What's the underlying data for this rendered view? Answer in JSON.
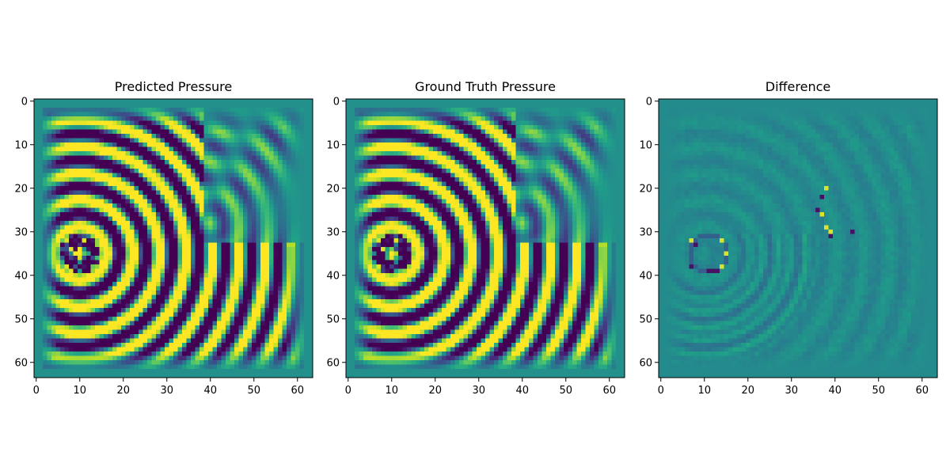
{
  "chart_data": [
    {
      "type": "heatmap",
      "title": "Predicted Pressure",
      "colormap": "viridis",
      "grid_shape": [
        64,
        64
      ],
      "xlim": [
        0,
        63
      ],
      "ylim": [
        63,
        0
      ],
      "xticks": [
        0,
        10,
        20,
        30,
        40,
        50,
        60
      ],
      "yticks": [
        0,
        10,
        20,
        30,
        40,
        50,
        60
      ],
      "grid": false,
      "field": {
        "source": [
          10,
          35
        ],
        "ring_wavelength": 6.1,
        "diffraction_origin": [
          40,
          28
        ],
        "inner_obstacle_pixels": [
          [
            7,
            32
          ],
          [
            9,
            32
          ],
          [
            11,
            32
          ],
          [
            13,
            32
          ],
          [
            8,
            34
          ],
          [
            12,
            34
          ],
          [
            10,
            36
          ],
          [
            14,
            37
          ],
          [
            7,
            38
          ],
          [
            11,
            38
          ]
        ]
      }
    },
    {
      "type": "heatmap",
      "title": "Ground Truth Pressure",
      "colormap": "viridis",
      "grid_shape": [
        64,
        64
      ],
      "xlim": [
        0,
        63
      ],
      "ylim": [
        63,
        0
      ],
      "xticks": [
        0,
        10,
        20,
        30,
        40,
        50,
        60
      ],
      "yticks": [
        0,
        10,
        20,
        30,
        40,
        50,
        60
      ],
      "grid": false,
      "field": {
        "source": [
          10,
          35
        ],
        "ring_wavelength": 6.1,
        "diffraction_origin": [
          40,
          28
        ],
        "inner_obstacle_pixels": [
          [
            7,
            32
          ],
          [
            9,
            32
          ],
          [
            11,
            32
          ],
          [
            13,
            32
          ],
          [
            8,
            34
          ],
          [
            12,
            34
          ],
          [
            10,
            36
          ],
          [
            14,
            37
          ],
          [
            7,
            38
          ],
          [
            11,
            38
          ]
        ]
      }
    },
    {
      "type": "heatmap",
      "title": "Difference",
      "colormap": "viridis",
      "grid_shape": [
        64,
        64
      ],
      "xlim": [
        0,
        63
      ],
      "ylim": [
        63,
        0
      ],
      "xticks": [
        0,
        10,
        20,
        30,
        40,
        50,
        60
      ],
      "yticks": [
        0,
        10,
        20,
        30,
        40,
        50,
        60
      ],
      "grid": false,
      "highlights": {
        "bright": [
          [
            7,
            32
          ],
          [
            14,
            32
          ],
          [
            15,
            35
          ],
          [
            14,
            38
          ],
          [
            37,
            26
          ],
          [
            38,
            29
          ],
          [
            39,
            30
          ],
          [
            38,
            20
          ]
        ],
        "dark": [
          [
            7,
            38
          ],
          [
            11,
            39
          ],
          [
            12,
            39
          ],
          [
            13,
            39
          ],
          [
            8,
            33
          ],
          [
            36,
            25
          ],
          [
            37,
            22
          ],
          [
            39,
            31
          ],
          [
            44,
            30
          ]
        ]
      }
    }
  ]
}
